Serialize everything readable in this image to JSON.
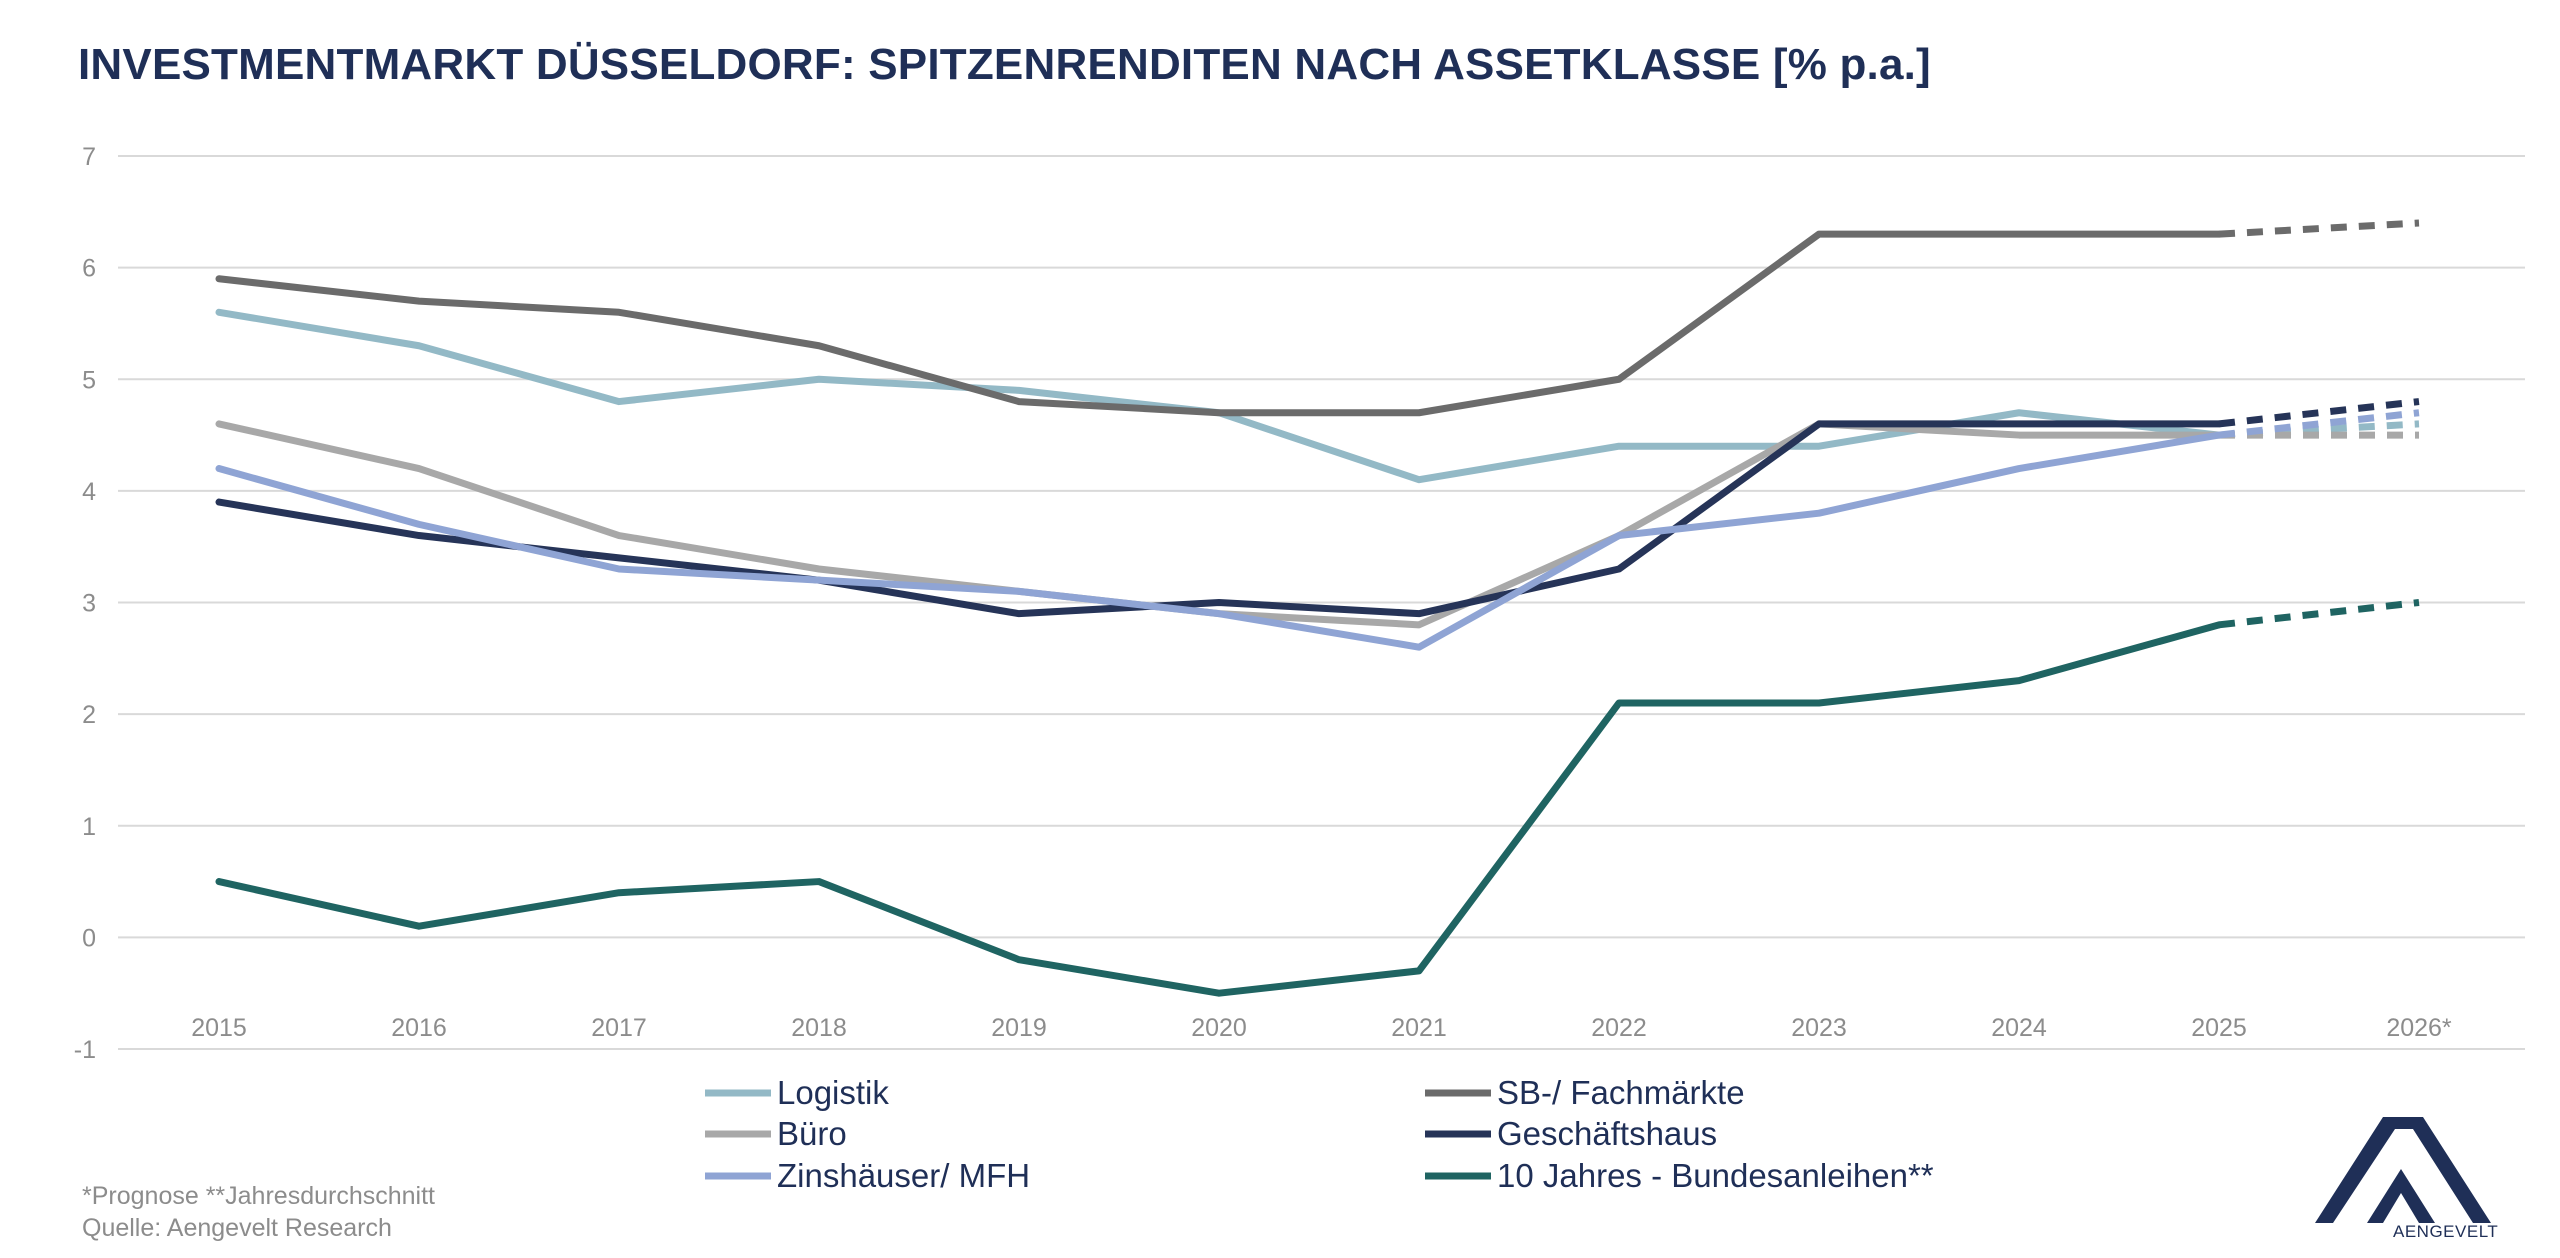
{
  "title": "INVESTMENTMARKT DÜSSELDORF: SPITZENRENDITEN NACH ASSETKLASSE [% p.a.]",
  "footnote": "*Prognose **Jahresdurchschnitt",
  "source": "Quelle: Aengevelt Research",
  "logo": {
    "text": "AENGEVELT",
    "color": "#1f2f57"
  },
  "chart_data": {
    "type": "line",
    "title": "INVESTMENTMARKT DÜSSELDORF: SPITZENRENDITEN NACH ASSETKLASSE [% p.a.]",
    "xlabel": "",
    "ylabel": "",
    "categories": [
      "2015",
      "2016",
      "2017",
      "2018",
      "2019",
      "2020",
      "2021",
      "2022",
      "2023",
      "2024",
      "2025",
      "2026*"
    ],
    "ylim": [
      -1,
      7
    ],
    "yticks": [
      "-1",
      "0",
      "1",
      "2",
      "3",
      "4",
      "5",
      "6",
      "7"
    ],
    "grid": true,
    "legend_position": "bottom",
    "forecast_from": "2025",
    "series": [
      {
        "name": "Logistik",
        "color": "#93b9c6",
        "values": [
          5.6,
          5.3,
          4.8,
          5.0,
          4.9,
          4.7,
          4.1,
          4.4,
          4.4,
          4.7,
          4.5,
          4.6
        ]
      },
      {
        "name": "SB-/ Fachmärkte",
        "color": "#6b6b6b",
        "values": [
          5.9,
          5.7,
          5.6,
          5.3,
          4.8,
          4.7,
          4.7,
          5.0,
          6.3,
          6.3,
          6.3,
          6.4
        ]
      },
      {
        "name": "Büro",
        "color": "#a8a8a8",
        "values": [
          4.6,
          4.2,
          3.6,
          3.3,
          3.1,
          2.9,
          2.8,
          3.6,
          4.6,
          4.5,
          4.5,
          4.5
        ]
      },
      {
        "name": "Geschäftshaus",
        "color": "#263458",
        "values": [
          3.9,
          3.6,
          3.4,
          3.2,
          2.9,
          3.0,
          2.9,
          3.3,
          4.6,
          4.6,
          4.6,
          4.8
        ]
      },
      {
        "name": "Zinshäuser/ MFH",
        "color": "#8fa4d4",
        "values": [
          4.2,
          3.7,
          3.3,
          3.2,
          3.1,
          2.9,
          2.6,
          3.6,
          3.8,
          4.2,
          4.5,
          4.7
        ]
      },
      {
        "name": "10 Jahres - Bundesanleihen**",
        "color": "#1f6462",
        "values": [
          0.5,
          0.1,
          0.4,
          0.5,
          -0.2,
          -0.5,
          -0.3,
          2.1,
          2.1,
          2.3,
          2.8,
          3.0
        ]
      }
    ]
  }
}
